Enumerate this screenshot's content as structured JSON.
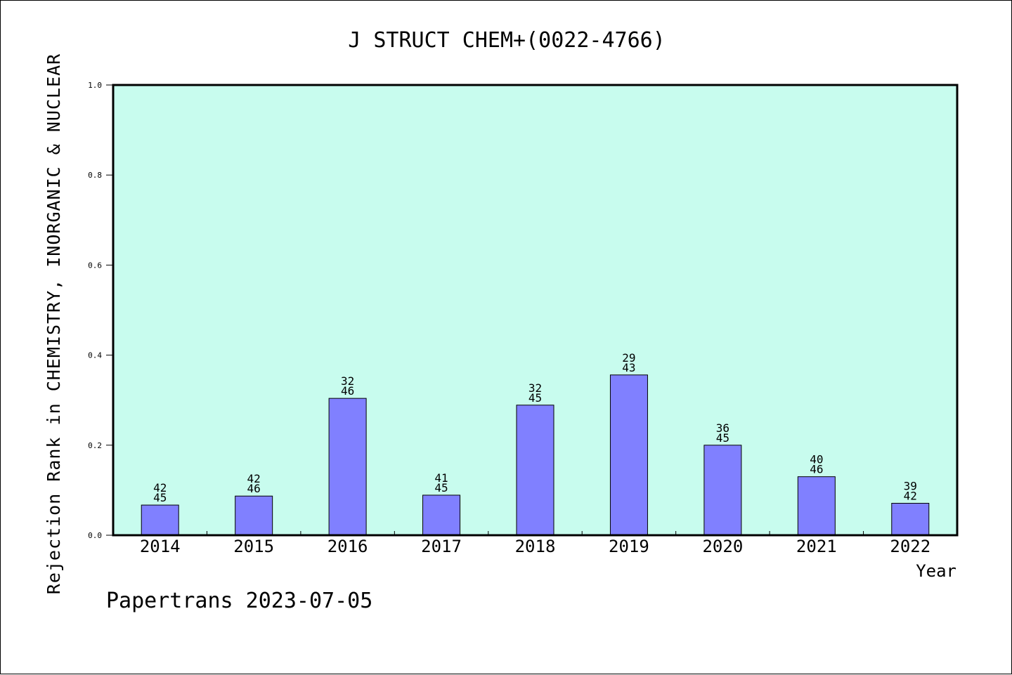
{
  "chart_data": {
    "type": "bar",
    "title": "J STRUCT CHEM+(0022-4766)",
    "xlabel": "Year",
    "ylabel": "Rejection Rank in CHEMISTRY, INORGANIC & NUCLEAR",
    "ylim": [
      0,
      1.0
    ],
    "yticks": [
      "0.0",
      "0.2",
      "0.4",
      "0.6",
      "0.8",
      "1.0"
    ],
    "grid": false,
    "categories": [
      "2014",
      "2015",
      "2016",
      "2017",
      "2018",
      "2019",
      "2020",
      "2021",
      "2022"
    ],
    "values": [
      0.067,
      0.087,
      0.304,
      0.089,
      0.289,
      0.356,
      0.2,
      0.13,
      0.071
    ],
    "labels_top": [
      "42",
      "42",
      "32",
      "41",
      "32",
      "29",
      "36",
      "40",
      "39"
    ],
    "labels_bottom": [
      "45",
      "46",
      "46",
      "45",
      "45",
      "43",
      "45",
      "46",
      "42"
    ],
    "colors": {
      "plot_background": "#c8fcee",
      "bar_fill": "#8080ff",
      "bar_edge": "#000000"
    }
  },
  "footer": "Papertrans 2023-07-05"
}
